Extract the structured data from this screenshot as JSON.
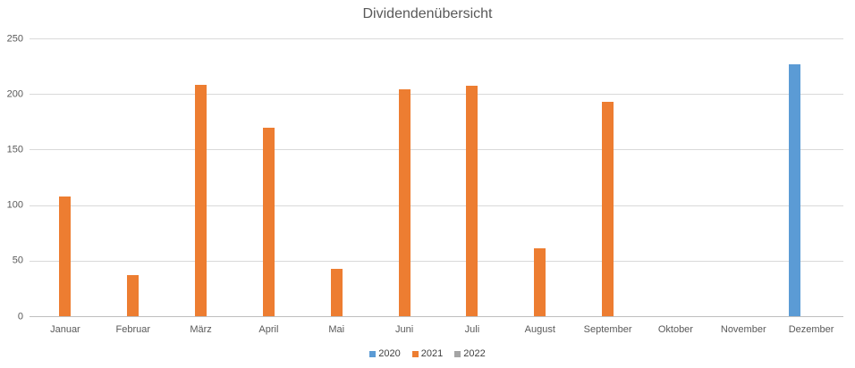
{
  "chart": {
    "title": "Dividendenübersicht"
  },
  "chart_data": {
    "type": "bar",
    "title": "Dividendenübersicht",
    "categories": [
      "Januar",
      "Februar",
      "März",
      "April",
      "Mai",
      "Juni",
      "Juli",
      "August",
      "September",
      "Oktober",
      "November",
      "Dezember"
    ],
    "series": [
      {
        "name": "2020",
        "color": "#5B9BD5",
        "values": [
          0,
          0,
          0,
          0,
          0,
          0,
          0,
          0,
          0,
          0,
          0,
          227
        ]
      },
      {
        "name": "2021",
        "color": "#ED7D31",
        "values": [
          108,
          37,
          208,
          170,
          43,
          204,
          207,
          61,
          193,
          0,
          0,
          0
        ]
      },
      {
        "name": "2022",
        "color": "#A5A5A5",
        "values": [
          0,
          0,
          0,
          0,
          0,
          0,
          0,
          0,
          0,
          0,
          0,
          0
        ]
      }
    ],
    "xlabel": "",
    "ylabel": "",
    "ylim": [
      0,
      250
    ],
    "ytick_step": 50,
    "ytick_labels": [
      "0",
      "50",
      "100",
      "150",
      "200",
      "250"
    ],
    "grid": "horizontal",
    "legend_position": "bottom",
    "legend_entries": [
      "2020",
      "2021",
      "2022"
    ],
    "colors": {
      "series_2020": "#5B9BD5",
      "series_2021": "#ED7D31",
      "series_2022": "#A5A5A5",
      "title_text": "#595959",
      "axis_text": "#595959",
      "gridline": "#D9D9D9",
      "axis_line": "#BFBFBF",
      "background": "#FFFFFF"
    }
  }
}
